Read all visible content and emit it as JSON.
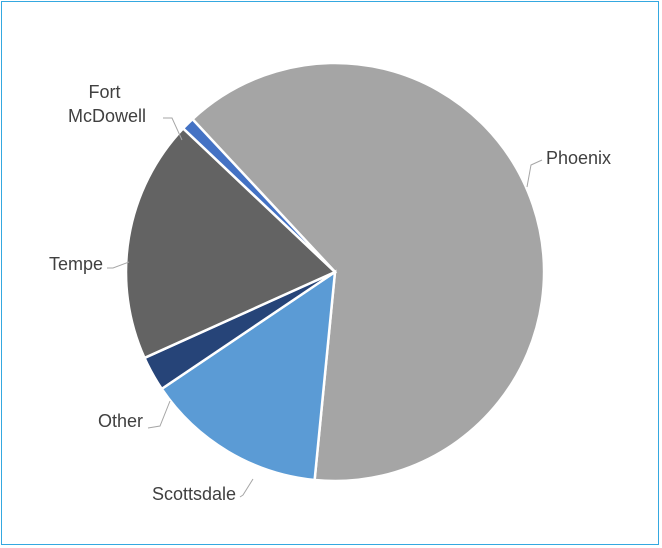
{
  "chart_data": {
    "type": "pie",
    "title": "",
    "categories": [
      "Phoenix",
      "Scottsdale",
      "Other",
      "Tempe",
      "Fort McDowell"
    ],
    "values": [
      63.5,
      14.0,
      2.7,
      18.8,
      1.0
    ],
    "colors": [
      "#a5a5a5",
      "#5b9bd5",
      "#264478",
      "#636363",
      "#4472c4"
    ],
    "legend": "none",
    "data_labels": "category-name-outside"
  }
}
